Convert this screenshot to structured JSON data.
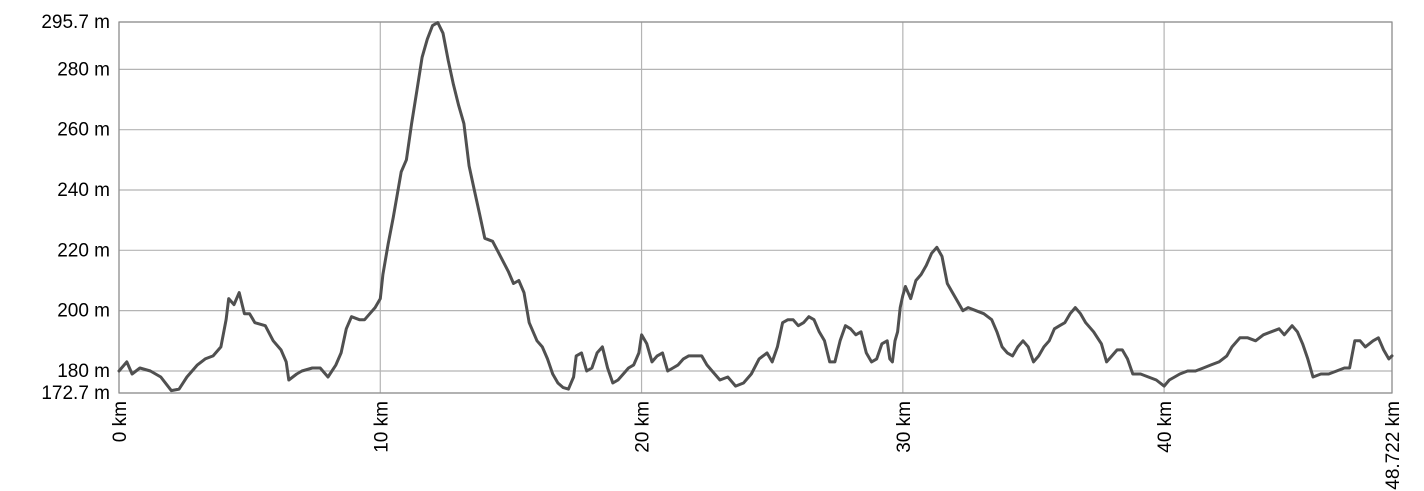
{
  "chart_data": {
    "type": "line",
    "title": "",
    "xlabel": "",
    "ylabel": "",
    "x_unit": "km",
    "y_unit": "m",
    "xlim": [
      0,
      48.722
    ],
    "ylim": [
      172.7,
      295.7
    ],
    "grid": true,
    "x_ticks": [
      {
        "value": 0,
        "label": "0 km"
      },
      {
        "value": 10,
        "label": "10 km"
      },
      {
        "value": 20,
        "label": "20 km"
      },
      {
        "value": 30,
        "label": "30 km"
      },
      {
        "value": 40,
        "label": "40 km"
      },
      {
        "value": 48.722,
        "label": "48.722 km"
      }
    ],
    "y_ticks": [
      {
        "value": 172.7,
        "label": "172.7 m"
      },
      {
        "value": 180,
        "label": "180 m"
      },
      {
        "value": 200,
        "label": "200 m"
      },
      {
        "value": 220,
        "label": "220 m"
      },
      {
        "value": 240,
        "label": "240 m"
      },
      {
        "value": 260,
        "label": "260 m"
      },
      {
        "value": 280,
        "label": "280 m"
      },
      {
        "value": 295.7,
        "label": "295.7 m"
      }
    ],
    "series": [
      {
        "color": "#505050",
        "points": [
          [
            0,
            180
          ],
          [
            0.3,
            183
          ],
          [
            0.5,
            179
          ],
          [
            0.8,
            181
          ],
          [
            1.2,
            180
          ],
          [
            1.6,
            178
          ],
          [
            2.0,
            173.5
          ],
          [
            2.3,
            174
          ],
          [
            2.6,
            178
          ],
          [
            3.0,
            182
          ],
          [
            3.3,
            184
          ],
          [
            3.6,
            185
          ],
          [
            3.9,
            188
          ],
          [
            4.1,
            197
          ],
          [
            4.2,
            204
          ],
          [
            4.4,
            202
          ],
          [
            4.6,
            206
          ],
          [
            4.8,
            199
          ],
          [
            5.0,
            199
          ],
          [
            5.2,
            196
          ],
          [
            5.6,
            195
          ],
          [
            5.9,
            190
          ],
          [
            6.2,
            187
          ],
          [
            6.4,
            183
          ],
          [
            6.5,
            177
          ],
          [
            6.8,
            179
          ],
          [
            7.0,
            180
          ],
          [
            7.4,
            181
          ],
          [
            7.7,
            181
          ],
          [
            8.0,
            178
          ],
          [
            8.3,
            182
          ],
          [
            8.5,
            186
          ],
          [
            8.7,
            194
          ],
          [
            8.9,
            198
          ],
          [
            9.2,
            197
          ],
          [
            9.4,
            197
          ],
          [
            9.6,
            199
          ],
          [
            9.8,
            201
          ],
          [
            10.0,
            204
          ],
          [
            10.1,
            212
          ],
          [
            10.3,
            222
          ],
          [
            10.5,
            231
          ],
          [
            10.8,
            246
          ],
          [
            11.0,
            250
          ],
          [
            11.2,
            262
          ],
          [
            11.4,
            273
          ],
          [
            11.6,
            284
          ],
          [
            11.8,
            290
          ],
          [
            12.0,
            294.5
          ],
          [
            12.2,
            295.5
          ],
          [
            12.4,
            292
          ],
          [
            12.6,
            283
          ],
          [
            12.8,
            275
          ],
          [
            13.0,
            268
          ],
          [
            13.2,
            262
          ],
          [
            13.4,
            248
          ],
          [
            13.6,
            240
          ],
          [
            13.8,
            232
          ],
          [
            14.0,
            224
          ],
          [
            14.3,
            223
          ],
          [
            14.6,
            218
          ],
          [
            14.9,
            213
          ],
          [
            15.1,
            209
          ],
          [
            15.3,
            210
          ],
          [
            15.5,
            206
          ],
          [
            15.7,
            196
          ],
          [
            16.0,
            190
          ],
          [
            16.2,
            188
          ],
          [
            16.4,
            184
          ],
          [
            16.6,
            179
          ],
          [
            16.8,
            176
          ],
          [
            17.0,
            174.5
          ],
          [
            17.2,
            174
          ],
          [
            17.4,
            178
          ],
          [
            17.5,
            185
          ],
          [
            17.7,
            186
          ],
          [
            17.9,
            180
          ],
          [
            18.1,
            181
          ],
          [
            18.3,
            186
          ],
          [
            18.5,
            188
          ],
          [
            18.7,
            181
          ],
          [
            18.9,
            176
          ],
          [
            19.1,
            177
          ],
          [
            19.3,
            179
          ],
          [
            19.5,
            181
          ],
          [
            19.7,
            182
          ],
          [
            19.9,
            186
          ],
          [
            20.0,
            192
          ],
          [
            20.2,
            189
          ],
          [
            20.4,
            183
          ],
          [
            20.6,
            185
          ],
          [
            20.8,
            186
          ],
          [
            21.0,
            180
          ],
          [
            21.2,
            181
          ],
          [
            21.4,
            182
          ],
          [
            21.6,
            184
          ],
          [
            21.8,
            185
          ],
          [
            22.1,
            185
          ],
          [
            22.3,
            185
          ],
          [
            22.5,
            182
          ],
          [
            22.7,
            180
          ],
          [
            23.0,
            177
          ],
          [
            23.3,
            178
          ],
          [
            23.6,
            175
          ],
          [
            23.9,
            176
          ],
          [
            24.2,
            179
          ],
          [
            24.5,
            184
          ],
          [
            24.8,
            186
          ],
          [
            25.0,
            183
          ],
          [
            25.2,
            188
          ],
          [
            25.4,
            196
          ],
          [
            25.6,
            197
          ],
          [
            25.8,
            197
          ],
          [
            26.0,
            195
          ],
          [
            26.2,
            196
          ],
          [
            26.4,
            198
          ],
          [
            26.6,
            197
          ],
          [
            26.8,
            193
          ],
          [
            27.0,
            190
          ],
          [
            27.2,
            183
          ],
          [
            27.4,
            183
          ],
          [
            27.6,
            190
          ],
          [
            27.8,
            195
          ],
          [
            28.0,
            194
          ],
          [
            28.2,
            192
          ],
          [
            28.4,
            193
          ],
          [
            28.6,
            186
          ],
          [
            28.8,
            183
          ],
          [
            29.0,
            184
          ],
          [
            29.2,
            189
          ],
          [
            29.4,
            190
          ],
          [
            29.5,
            184
          ],
          [
            29.6,
            183
          ],
          [
            29.7,
            190
          ],
          [
            29.8,
            193
          ],
          [
            29.9,
            201
          ],
          [
            30.0,
            205
          ],
          [
            30.1,
            208
          ],
          [
            30.3,
            204
          ],
          [
            30.5,
            210
          ],
          [
            30.7,
            212
          ],
          [
            30.9,
            215
          ],
          [
            31.1,
            219
          ],
          [
            31.3,
            221
          ],
          [
            31.5,
            218
          ],
          [
            31.7,
            209
          ],
          [
            31.9,
            206
          ],
          [
            32.1,
            203
          ],
          [
            32.3,
            200
          ],
          [
            32.5,
            201
          ],
          [
            32.8,
            200
          ],
          [
            33.1,
            199
          ],
          [
            33.4,
            197
          ],
          [
            33.6,
            193
          ],
          [
            33.8,
            188
          ],
          [
            34.0,
            186
          ],
          [
            34.2,
            185
          ],
          [
            34.4,
            188
          ],
          [
            34.6,
            190
          ],
          [
            34.8,
            188
          ],
          [
            35.0,
            183
          ],
          [
            35.2,
            185
          ],
          [
            35.4,
            188
          ],
          [
            35.6,
            190
          ],
          [
            35.8,
            194
          ],
          [
            36.0,
            195
          ],
          [
            36.2,
            196
          ],
          [
            36.4,
            199
          ],
          [
            36.6,
            201
          ],
          [
            36.8,
            199
          ],
          [
            37.0,
            196
          ],
          [
            37.3,
            193
          ],
          [
            37.6,
            189
          ],
          [
            37.8,
            183
          ],
          [
            38.0,
            185
          ],
          [
            38.2,
            187
          ],
          [
            38.4,
            187
          ],
          [
            38.6,
            184
          ],
          [
            38.8,
            179
          ],
          [
            39.1,
            179
          ],
          [
            39.4,
            178
          ],
          [
            39.7,
            177
          ],
          [
            40.0,
            175
          ],
          [
            40.2,
            177
          ],
          [
            40.4,
            178
          ],
          [
            40.6,
            179
          ],
          [
            40.9,
            180
          ],
          [
            41.2,
            180
          ],
          [
            41.5,
            181
          ],
          [
            41.8,
            182
          ],
          [
            42.1,
            183
          ],
          [
            42.4,
            185
          ],
          [
            42.6,
            188
          ],
          [
            42.9,
            191
          ],
          [
            43.2,
            191
          ],
          [
            43.5,
            190
          ],
          [
            43.8,
            192
          ],
          [
            44.1,
            193
          ],
          [
            44.4,
            194
          ],
          [
            44.6,
            192
          ],
          [
            44.9,
            195
          ],
          [
            45.1,
            193
          ],
          [
            45.3,
            189
          ],
          [
            45.5,
            184
          ],
          [
            45.7,
            178
          ],
          [
            46.0,
            179
          ],
          [
            46.3,
            179
          ],
          [
            46.6,
            180
          ],
          [
            46.9,
            181
          ],
          [
            47.1,
            181
          ],
          [
            47.3,
            190
          ],
          [
            47.5,
            190
          ],
          [
            47.7,
            188
          ],
          [
            48.0,
            190
          ],
          [
            48.2,
            191
          ],
          [
            48.4,
            187
          ],
          [
            48.6,
            184
          ],
          [
            48.722,
            185
          ]
        ]
      }
    ]
  }
}
